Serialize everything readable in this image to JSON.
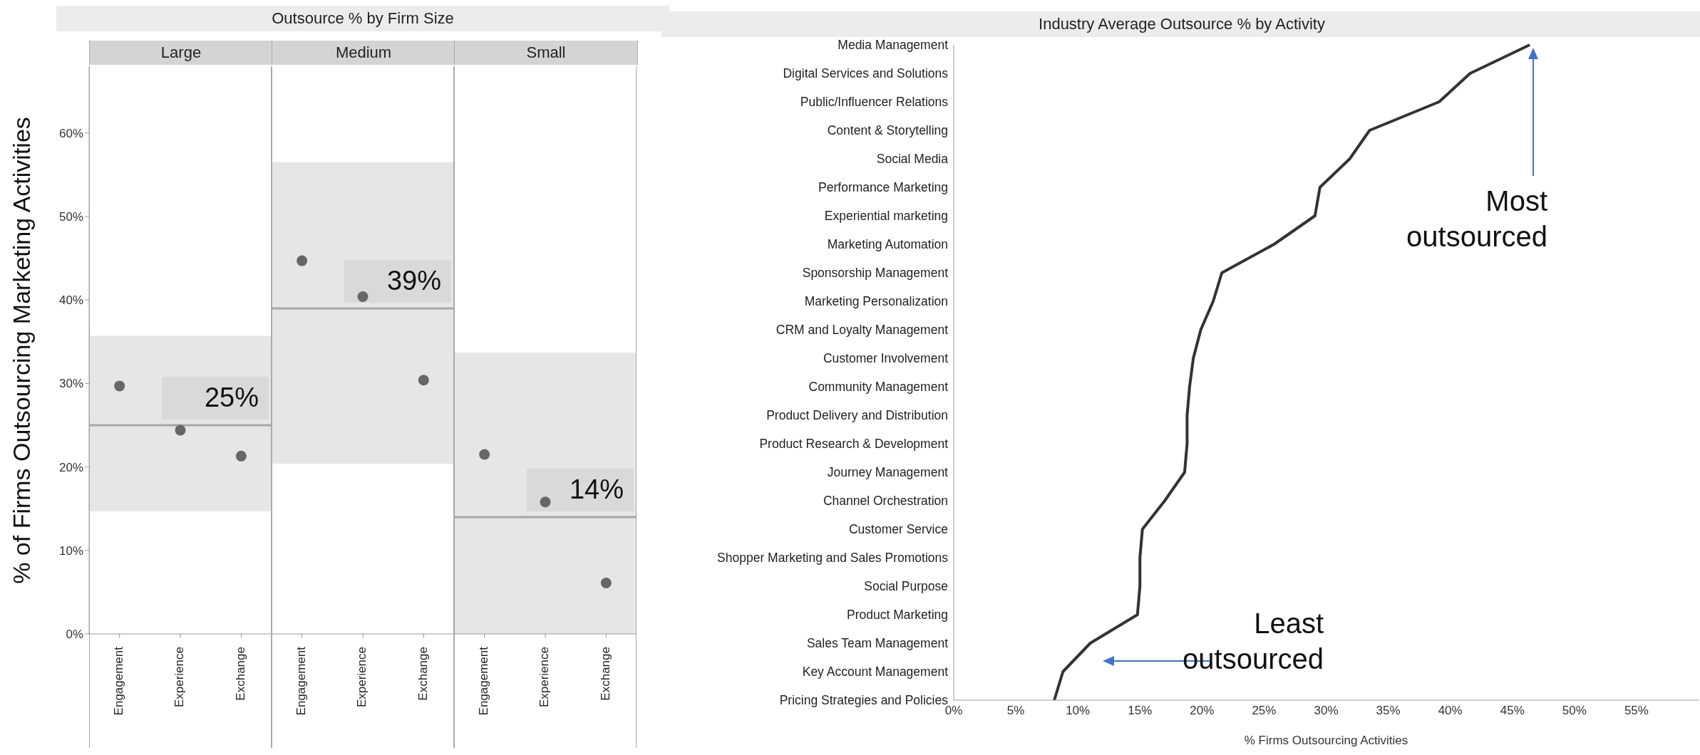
{
  "chart_data": [
    {
      "type": "scatter",
      "subtitle": "Large",
      "ylabel": "% of Firms Outsourcing Marketing Activities",
      "categories": [
        "Engagement",
        "Experience",
        "Exchange"
      ],
      "values": [
        29.7,
        24.4,
        21.3
      ],
      "color": "#666666",
      "marker": "circle",
      "ylim": [
        0,
        68
      ],
      "yticks": [
        {
          "value": 0,
          "label": "0%"
        },
        {
          "value": 10,
          "label": "10%"
        },
        {
          "value": 20,
          "label": "20%"
        },
        {
          "value": 30,
          "label": "30%"
        },
        {
          "value": 40,
          "label": "40%"
        },
        {
          "value": 50,
          "label": "50%"
        },
        {
          "value": 60,
          "label": "60%"
        }
      ],
      "ref_lines": [
        {
          "axis": "y",
          "value": 25,
          "label": "25%",
          "color": "#a6a6a6"
        }
      ],
      "bands": [
        {
          "axis": "y",
          "from": 14.7,
          "to": 35.7,
          "color": "#e6e6e6"
        }
      ]
    },
    {
      "type": "scatter",
      "title": "Outsource % by Firm Size",
      "subtitle": "Medium",
      "categories": [
        "Engagement",
        "Experience",
        "Exchange"
      ],
      "values": [
        44.7,
        40.4,
        30.4
      ],
      "color": "#666666",
      "marker": "circle",
      "ylim": [
        0,
        68
      ],
      "tick_labels": "x",
      "ref_lines": [
        {
          "axis": "y",
          "value": 39,
          "label": "39%",
          "color": "#a6a6a6"
        }
      ],
      "bands": [
        {
          "axis": "y",
          "from": 20.4,
          "to": 56.5,
          "color": "#e6e6e6"
        }
      ]
    },
    {
      "type": "scatter",
      "subtitle": "Small",
      "categories": [
        "Engagement",
        "Experience",
        "Exchange"
      ],
      "values": [
        21.5,
        15.8,
        6.1
      ],
      "color": "#666666",
      "marker": "circle",
      "ylim": [
        0,
        68
      ],
      "tick_labels": "x",
      "ref_lines": [
        {
          "axis": "y",
          "value": 14,
          "label": "14%",
          "color": "#a6a6a6"
        }
      ],
      "bands": [
        {
          "axis": "y",
          "from": 0,
          "to": 33.7,
          "color": "#e6e6e6"
        }
      ]
    },
    {
      "type": "line",
      "orientation": "horizontal",
      "title": "Industry Average Outsource % by Activity",
      "xlabel": "% Firms Outsourcing Activities",
      "color": "#333333",
      "categories": [
        "Media Management",
        "Digital Services and Solutions",
        "Public/Influencer Relations",
        "Content & Storytelling",
        "Social Media",
        "Performance Marketing",
        "Experiential marketing",
        "Marketing Automation",
        "Sponsorship Management",
        "Marketing Personalization",
        "CRM and Loyalty Management",
        "Customer Involvement",
        "Community Management",
        "Product Delivery and Distribution",
        "Product Research & Development",
        "Journey Management",
        "Channel Orchestration",
        "Customer Service",
        "Shopper Marketing and Sales Promotions",
        "Social Purpose",
        "Product Marketing",
        "Sales Team Management",
        "Key Account Management",
        "Pricing Strategies and Policies"
      ],
      "values": [
        46.4,
        41.6,
        39.1,
        33.5,
        31.9,
        29.5,
        29.1,
        25.8,
        21.6,
        20.9,
        19.9,
        19.3,
        19.0,
        18.8,
        18.8,
        18.6,
        17.0,
        15.2,
        15.0,
        15.0,
        14.8,
        11.0,
        8.8,
        8.1
      ],
      "xlim": [
        0,
        60
      ],
      "xticks": [
        {
          "value": 0,
          "label": "0%"
        },
        {
          "value": 5,
          "label": "5%"
        },
        {
          "value": 10,
          "label": "10%"
        },
        {
          "value": 15,
          "label": "15%"
        },
        {
          "value": 20,
          "label": "20%"
        },
        {
          "value": 25,
          "label": "25%"
        },
        {
          "value": 30,
          "label": "30%"
        },
        {
          "value": 35,
          "label": "35%"
        },
        {
          "value": 40,
          "label": "40%"
        },
        {
          "value": 45,
          "label": "45%"
        },
        {
          "value": 50,
          "label": "50%"
        },
        {
          "value": 55,
          "label": "55%"
        }
      ],
      "marker": "none",
      "annotations": [
        "Most outsourced",
        "Least outsourced"
      ]
    }
  ]
}
